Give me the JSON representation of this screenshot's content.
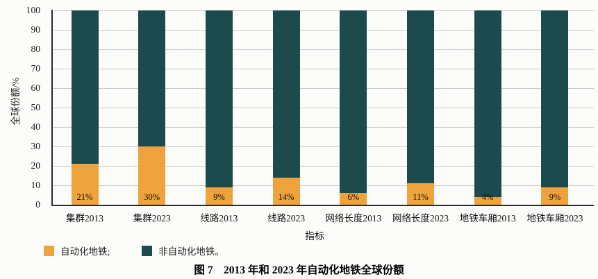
{
  "chart_data": {
    "type": "bar",
    "stacked": true,
    "title": "",
    "caption": "图 7　2013 年和 2023 年自动化地铁全球份额",
    "categories": [
      "集群2013",
      "集群2023",
      "线路2013",
      "线路2023",
      "网络长度2013",
      "网络长度2023",
      "地铁车厢2013",
      "地铁车厢2023"
    ],
    "series": [
      {
        "name": "自动化地铁",
        "color": "#efa33c",
        "values": [
          21,
          30,
          9,
          14,
          6,
          11,
          4,
          9
        ]
      },
      {
        "name": "非自动化地铁",
        "color": "#1d4a4d",
        "values": [
          79,
          70,
          91,
          86,
          94,
          89,
          96,
          91
        ]
      }
    ],
    "bar_labels": [
      "21%",
      "30%",
      "9%",
      "14%",
      "6%",
      "11%",
      "4%",
      "9%"
    ],
    "xlabel": "指标",
    "ylabel": "全球份额/%",
    "ylim": [
      0,
      100
    ],
    "yticks": [
      0,
      10,
      20,
      30,
      40,
      50,
      60,
      70,
      80,
      90,
      100
    ],
    "grid": "horizontal",
    "legend_position": "bottom-left",
    "legend": [
      {
        "label": "自动化地铁;",
        "color": "#efa33c"
      },
      {
        "label": "非自动化地铁。",
        "color": "#1d4a4d"
      }
    ],
    "axis_color": "#2b2b2b",
    "gridline_color": "#c9c9c9"
  }
}
